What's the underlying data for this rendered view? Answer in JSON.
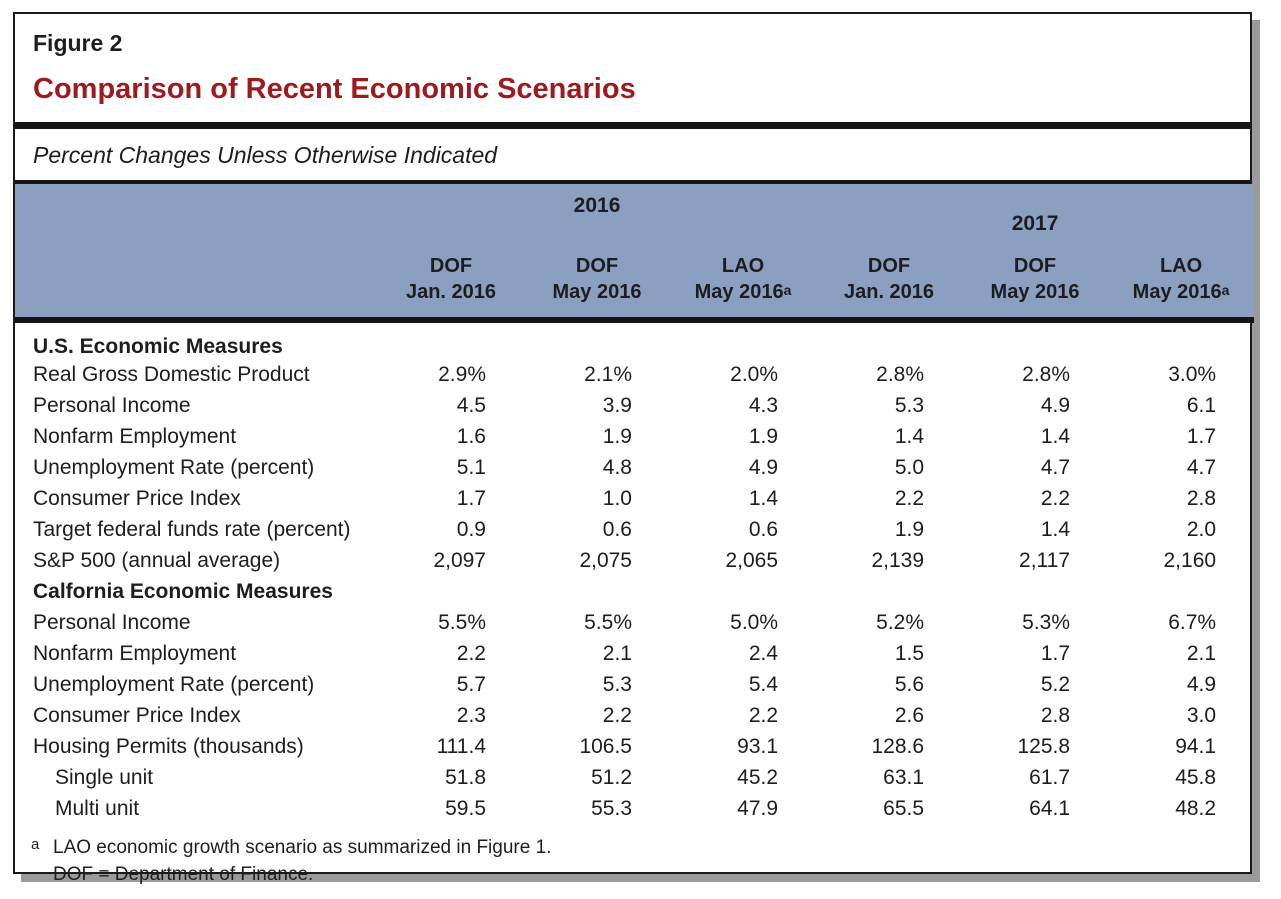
{
  "figure": {
    "label": "Figure 2",
    "title": "Comparison of Recent Economic Scenarios",
    "subtitle": "Percent Changes Unless Otherwise Indicated"
  },
  "colors": {
    "header_bg": "#8ba0c0",
    "title_red": "#9b1b1f",
    "shadow": "#9a9a9a"
  },
  "chart_data": {
    "type": "table",
    "column_groups": [
      {
        "label": "2016",
        "span": 3
      },
      {
        "label": "2017",
        "span": 3
      }
    ],
    "columns": [
      {
        "line1": "DOF",
        "line2": "Jan. 2016",
        "sup": ""
      },
      {
        "line1": "DOF",
        "line2": "May 2016",
        "sup": ""
      },
      {
        "line1": "LAO",
        "line2": "May 2016",
        "sup": "a"
      },
      {
        "line1": "DOF",
        "line2": "Jan. 2016",
        "sup": ""
      },
      {
        "line1": "DOF",
        "line2": "May 2016",
        "sup": ""
      },
      {
        "line1": "LAO",
        "line2": "May 2016",
        "sup": "a"
      }
    ],
    "rows": [
      {
        "label": "U.S. Economic Measures",
        "type": "section",
        "indent": false,
        "values": []
      },
      {
        "label": "Real Gross Domestic Product",
        "type": "data",
        "indent": false,
        "values": [
          "2.9%",
          "2.1%",
          "2.0%",
          "2.8%",
          "2.8%",
          "3.0%"
        ]
      },
      {
        "label": "Personal Income",
        "type": "data",
        "indent": false,
        "values": [
          "4.5",
          "3.9",
          "4.3",
          "5.3",
          "4.9",
          "6.1"
        ]
      },
      {
        "label": "Nonfarm Employment",
        "type": "data",
        "indent": false,
        "values": [
          "1.6",
          "1.9",
          "1.9",
          "1.4",
          "1.4",
          "1.7"
        ]
      },
      {
        "label": "Unemployment Rate (percent)",
        "type": "data",
        "indent": false,
        "values": [
          "5.1",
          "4.8",
          "4.9",
          "5.0",
          "4.7",
          "4.7"
        ]
      },
      {
        "label": "Consumer Price Index",
        "type": "data",
        "indent": false,
        "values": [
          "1.7",
          "1.0",
          "1.4",
          "2.2",
          "2.2",
          "2.8"
        ]
      },
      {
        "label": "Target federal funds rate (percent)",
        "type": "data",
        "indent": false,
        "values": [
          "0.9",
          "0.6",
          "0.6",
          "1.9",
          "1.4",
          "2.0"
        ]
      },
      {
        "label": "S&P 500 (annual average)",
        "type": "data",
        "indent": false,
        "values": [
          "2,097",
          "2,075",
          "2,065",
          "2,139",
          "2,117",
          "2,160"
        ]
      },
      {
        "label": "Calfornia Economic Measures",
        "type": "section",
        "indent": false,
        "values": []
      },
      {
        "label": "Personal Income",
        "type": "data",
        "indent": false,
        "values": [
          "5.5%",
          "5.5%",
          "5.0%",
          "5.2%",
          "5.3%",
          "6.7%"
        ]
      },
      {
        "label": "Nonfarm Employment",
        "type": "data",
        "indent": false,
        "values": [
          "2.2",
          "2.1",
          "2.4",
          "1.5",
          "1.7",
          "2.1"
        ]
      },
      {
        "label": "Unemployment Rate (percent)",
        "type": "data",
        "indent": false,
        "values": [
          "5.7",
          "5.3",
          "5.4",
          "5.6",
          "5.2",
          "4.9"
        ]
      },
      {
        "label": "Consumer Price Index",
        "type": "data",
        "indent": false,
        "values": [
          "2.3",
          "2.2",
          "2.2",
          "2.6",
          "2.8",
          "3.0"
        ]
      },
      {
        "label": "Housing Permits (thousands)",
        "type": "data",
        "indent": false,
        "values": [
          "111.4",
          "106.5",
          "93.1",
          "128.6",
          "125.8",
          "94.1"
        ]
      },
      {
        "label": "Single unit",
        "type": "data",
        "indent": true,
        "values": [
          "51.8",
          "51.2",
          "45.2",
          "63.1",
          "61.7",
          "45.8"
        ]
      },
      {
        "label": "Multi unit",
        "type": "data",
        "indent": true,
        "values": [
          "59.5",
          "55.3",
          "47.9",
          "65.5",
          "64.1",
          "48.2"
        ]
      }
    ],
    "footnotes": [
      {
        "sup": "a",
        "text": "LAO economic growth scenario as summarized in Figure 1."
      },
      {
        "sup": "",
        "text": "DOF = Department of Finance."
      }
    ]
  }
}
